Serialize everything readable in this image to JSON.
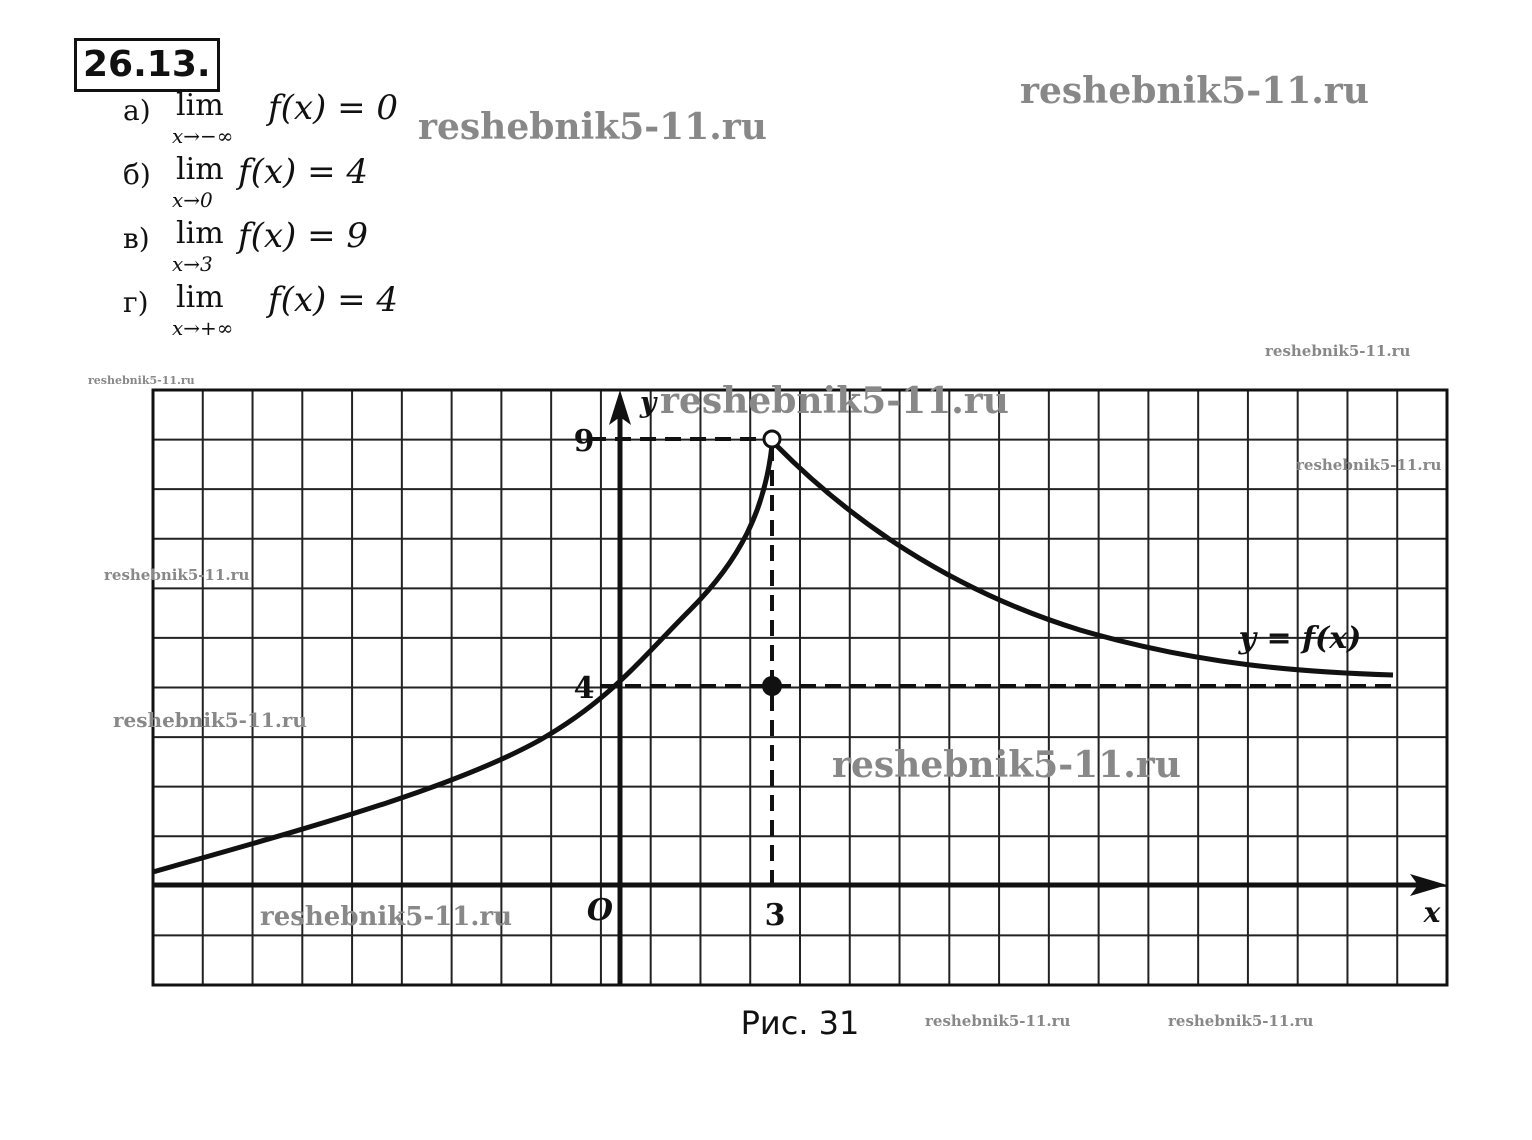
{
  "header": {
    "number": "26.13."
  },
  "items": [
    {
      "label": "а)",
      "lim": "lim",
      "sub": "x→−∞",
      "expr": "f(x) = 0"
    },
    {
      "label": "б)",
      "lim": "lim",
      "sub": "x→0",
      "expr": "f(x) = 4"
    },
    {
      "label": "в)",
      "lim": "lim",
      "sub": "x→3",
      "expr": "f(x) = 9"
    },
    {
      "label": "г)",
      "lim": "lim",
      "sub": "x→+∞",
      "expr": "f(x) = 4"
    }
  ],
  "figure": {
    "y_axis": "y",
    "x_axis": "x",
    "origin": "O",
    "y_ticks": [
      "9",
      "4"
    ],
    "x_ticks": [
      "3"
    ],
    "curve_label": "y = f(x)",
    "caption": "Рис. 31"
  },
  "watermarks": [
    "reshebnik5-11.ru",
    "reshebnik5-11.ru",
    "reshebnik5-11.ru",
    "reshebnik5-11.ru",
    "reshebnik5-11.ru",
    "reshebnik5-11.ru",
    "reshebnik5-11.ru",
    "reshebnik5-11.ru",
    "reshebnik5-11.ru",
    "reshebnik5-11.ru",
    "reshebnik5-11.ru",
    "reshebnik5-11.ru"
  ]
}
